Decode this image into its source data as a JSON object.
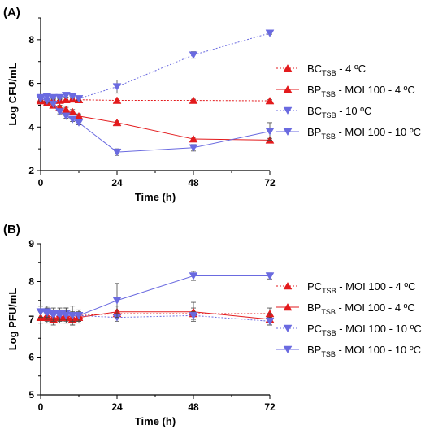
{
  "colors": {
    "red": "#e31a1c",
    "blue": "#6a6ae0",
    "axis": "#000000"
  },
  "chart_data": [
    {
      "panel": "(A)",
      "type": "line",
      "xlabel": "Time (h)",
      "ylabel": "Log CFU/mL",
      "xlim": [
        0,
        72
      ],
      "ylim": [
        2,
        9
      ],
      "xticks": [
        0,
        24,
        48,
        72
      ],
      "yticks": [
        2,
        4,
        6,
        8
      ],
      "grid": false,
      "legend_position": "right",
      "series": [
        {
          "name": "BC",
          "sub": "TSB",
          "suffix": " - 4 ºC",
          "color": "#e31a1c",
          "dashed": true,
          "marker": "triangle-up",
          "x": [
            0,
            2,
            4,
            6,
            8,
            10,
            12,
            24,
            48,
            72
          ],
          "y": [
            5.25,
            5.25,
            5.22,
            5.22,
            5.25,
            5.28,
            5.25,
            5.22,
            5.22,
            5.2
          ],
          "err": [
            0.08,
            0.08,
            0.08,
            0.08,
            0.08,
            0.08,
            0.08,
            0.05,
            0.05,
            0.05
          ]
        },
        {
          "name": "BP",
          "sub": "TSB",
          "suffix": " - MOI 100 - 4 ºC",
          "color": "#e31a1c",
          "dashed": false,
          "marker": "triangle-up",
          "x": [
            0,
            2,
            4,
            6,
            8,
            10,
            12,
            24,
            48,
            72
          ],
          "y": [
            5.2,
            5.1,
            5.0,
            4.9,
            4.8,
            4.7,
            4.5,
            4.2,
            3.45,
            3.4
          ],
          "err": [
            0.1,
            0.1,
            0.1,
            0.1,
            0.1,
            0.1,
            0.1,
            0.08,
            0.08,
            0.08
          ]
        },
        {
          "name": "BC",
          "sub": "TSB",
          "suffix": " - 10 ºC",
          "color": "#6a6ae0",
          "dashed": true,
          "marker": "triangle-down",
          "x": [
            0,
            2,
            4,
            6,
            8,
            10,
            12,
            24,
            48,
            72
          ],
          "y": [
            5.35,
            5.4,
            5.35,
            5.35,
            5.45,
            5.4,
            5.3,
            5.85,
            7.3,
            8.3
          ],
          "err": [
            0.08,
            0.08,
            0.08,
            0.08,
            0.08,
            0.08,
            0.08,
            0.3,
            0.15,
            0.05
          ]
        },
        {
          "name": "BP",
          "sub": "TSB",
          "suffix": " - MOI 100 - 10 ºC",
          "color": "#6a6ae0",
          "dashed": false,
          "marker": "triangle-down",
          "x": [
            0,
            2,
            4,
            6,
            8,
            10,
            12,
            24,
            48,
            72
          ],
          "y": [
            5.3,
            5.2,
            5.05,
            4.7,
            4.5,
            4.35,
            4.2,
            2.85,
            3.05,
            3.8
          ],
          "err": [
            0.1,
            0.1,
            0.1,
            0.1,
            0.1,
            0.1,
            0.1,
            0.15,
            0.15,
            0.4
          ]
        }
      ]
    },
    {
      "panel": "(B)",
      "type": "line",
      "xlabel": "Time (h)",
      "ylabel": "Log PFU/mL",
      "xlim": [
        0,
        72
      ],
      "ylim": [
        5,
        9
      ],
      "xticks": [
        0,
        24,
        48,
        72
      ],
      "yticks": [
        5,
        6,
        7,
        8,
        9
      ],
      "grid": false,
      "legend_position": "right",
      "series": [
        {
          "name": "PC",
          "sub": "TSB",
          "suffix": " - MOI 100 - 4 ºC",
          "color": "#e31a1c",
          "dashed": true,
          "marker": "triangle-up",
          "x": [
            0,
            2,
            4,
            6,
            8,
            10,
            12,
            24,
            48,
            72
          ],
          "y": [
            7.05,
            7.1,
            7.05,
            7.1,
            7.1,
            7.05,
            7.1,
            7.15,
            7.15,
            7.15
          ],
          "err": [
            0.15,
            0.15,
            0.15,
            0.15,
            0.15,
            0.15,
            0.15,
            0.1,
            0.15,
            0.15
          ]
        },
        {
          "name": "BP",
          "sub": "TSB",
          "suffix": " - MOI 100 - 4 ºC",
          "color": "#e31a1c",
          "dashed": false,
          "marker": "triangle-up",
          "x": [
            0,
            2,
            4,
            6,
            8,
            10,
            12,
            24,
            48,
            72
          ],
          "y": [
            7.05,
            7.05,
            7.0,
            7.05,
            7.05,
            7.0,
            7.05,
            7.2,
            7.2,
            7.0
          ],
          "err": [
            0.15,
            0.15,
            0.15,
            0.15,
            0.15,
            0.15,
            0.15,
            0.15,
            0.25,
            0.15
          ]
        },
        {
          "name": "PC",
          "sub": "TSB",
          "suffix": " - MOI 100 - 10 ºC",
          "color": "#6a6ae0",
          "dashed": true,
          "marker": "triangle-down",
          "x": [
            0,
            2,
            4,
            6,
            8,
            10,
            12,
            24,
            48,
            72
          ],
          "y": [
            7.2,
            7.15,
            7.1,
            7.1,
            7.15,
            7.1,
            7.1,
            7.05,
            7.1,
            6.95
          ],
          "err": [
            0.15,
            0.15,
            0.15,
            0.15,
            0.15,
            0.15,
            0.15,
            0.1,
            0.1,
            0.1
          ]
        },
        {
          "name": "BP",
          "sub": "TSB",
          "suffix": " - MOI 100 - 10 ºC",
          "color": "#6a6ae0",
          "dashed": false,
          "marker": "triangle-down",
          "x": [
            0,
            2,
            4,
            6,
            8,
            10,
            12,
            24,
            48,
            72
          ],
          "y": [
            7.2,
            7.2,
            7.15,
            7.15,
            7.1,
            7.1,
            7.1,
            7.5,
            8.15,
            8.15
          ],
          "err": [
            0.15,
            0.15,
            0.15,
            0.15,
            0.2,
            0.25,
            0.15,
            0.45,
            0.12,
            0.08
          ]
        }
      ]
    }
  ]
}
